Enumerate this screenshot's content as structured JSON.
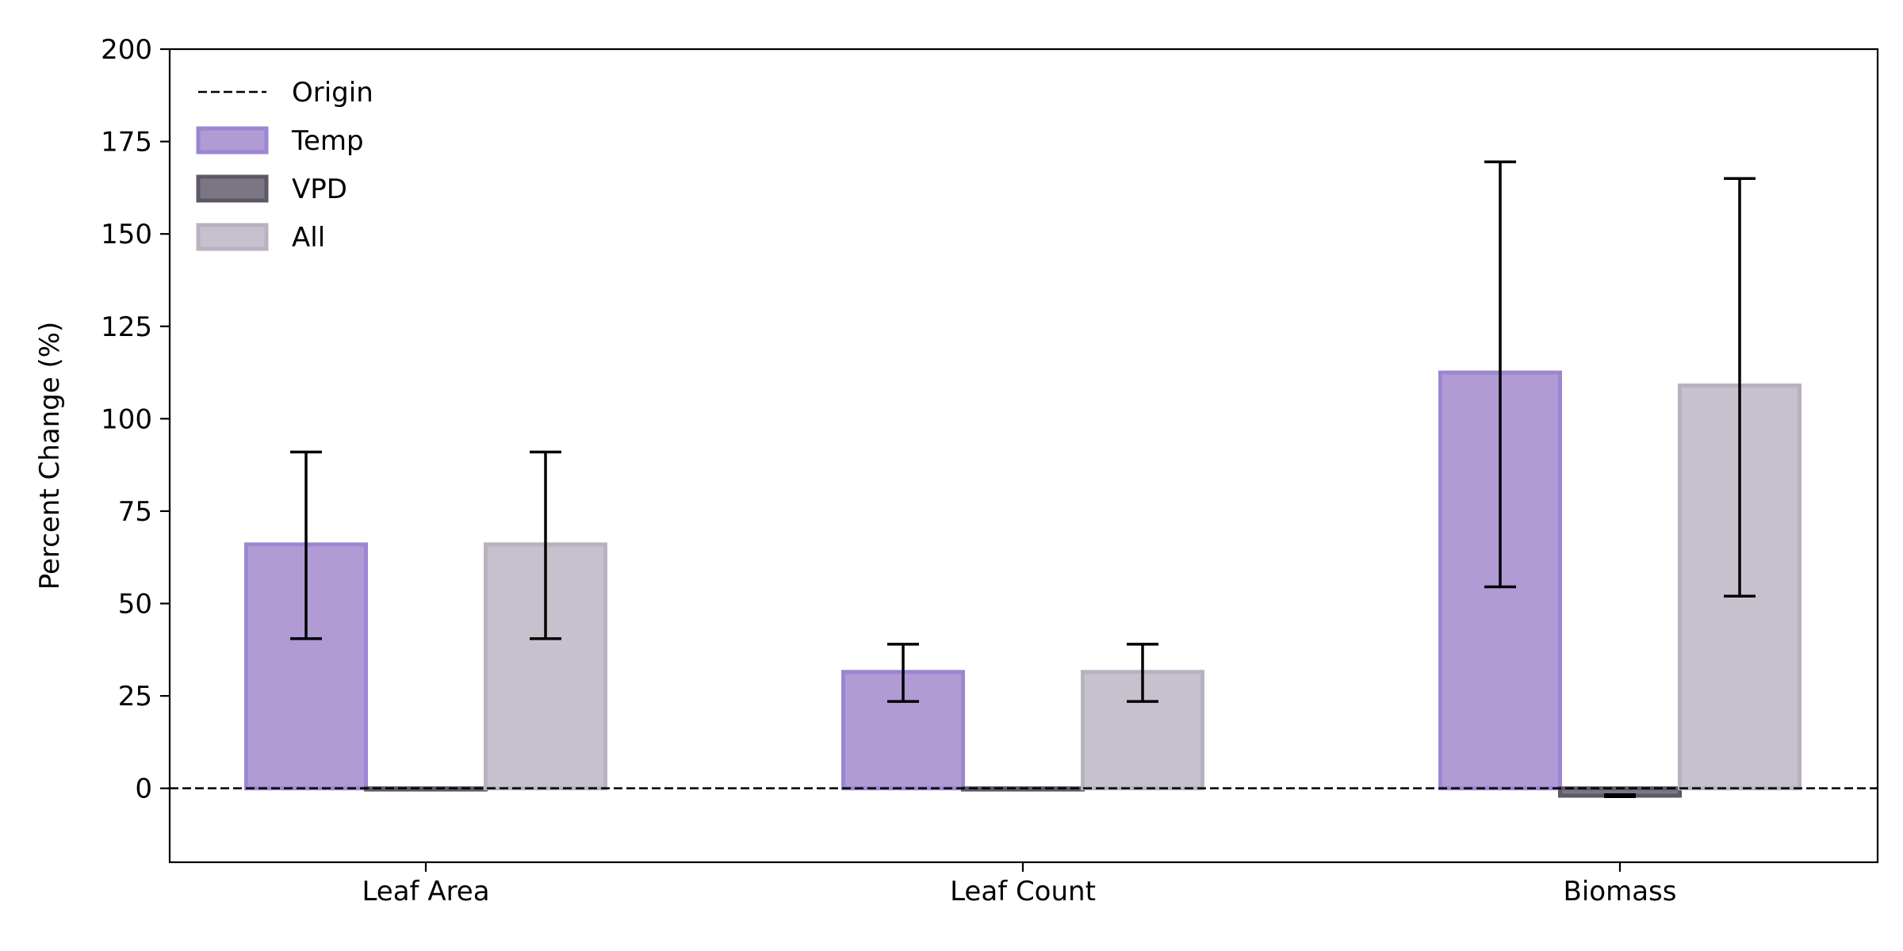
{
  "chart_data": {
    "type": "bar",
    "title": "",
    "xlabel": "",
    "ylabel": "Percent Change (%)",
    "ylim": [
      -20,
      200
    ],
    "yticks": [
      0,
      25,
      50,
      75,
      100,
      125,
      150,
      175,
      200
    ],
    "categories": [
      "Leaf Area",
      "Leaf Count",
      "Biomass"
    ],
    "series": [
      {
        "name": "Temp",
        "values": [
          66,
          31.5,
          112.5
        ],
        "err_low": [
          40.5,
          23.5,
          54.5
        ],
        "err_high": [
          91,
          39,
          169.5
        ],
        "fill": "#b09bd5",
        "stroke": "#9d85d1"
      },
      {
        "name": "VPD",
        "values": [
          0,
          0,
          -2
        ],
        "err_low": [
          0,
          0,
          -2.5
        ],
        "err_high": [
          0,
          0,
          -1.5
        ],
        "fill": "#7c7684",
        "stroke": "#5d5865"
      },
      {
        "name": "All",
        "values": [
          66,
          31.5,
          109
        ],
        "err_low": [
          40.5,
          23.5,
          52
        ],
        "err_high": [
          91,
          39,
          165
        ],
        "fill": "#c7c1ce",
        "stroke": "#b8b1c0"
      }
    ],
    "reference_line": {
      "name": "Origin",
      "y": 0,
      "style": "dashed"
    },
    "legend": {
      "placement": "top-left",
      "entries": [
        "Origin",
        "Temp",
        "VPD",
        "All"
      ]
    },
    "grid": false
  }
}
